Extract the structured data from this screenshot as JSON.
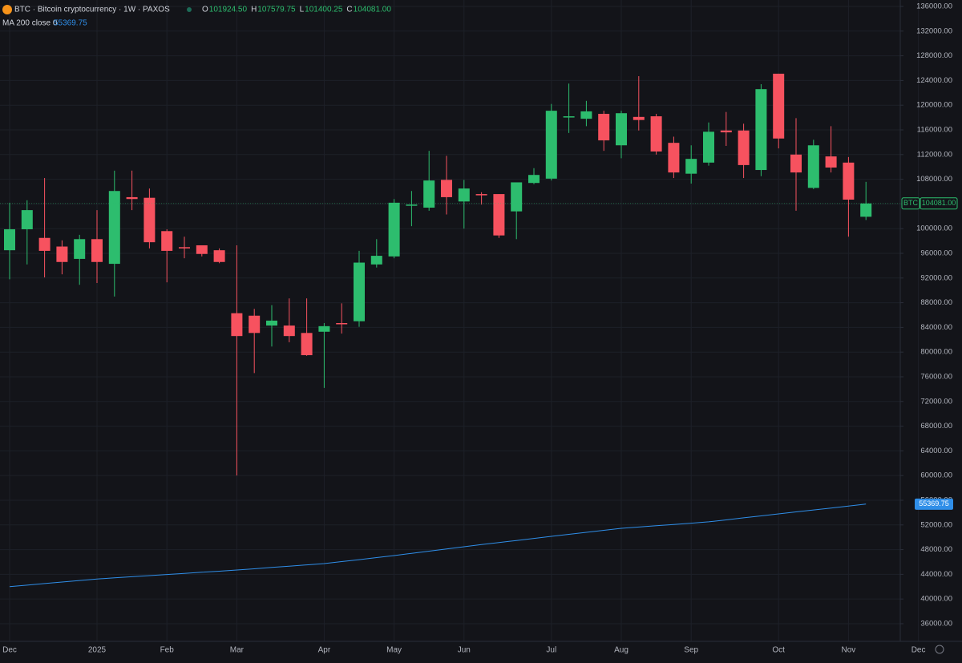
{
  "chart_data": {
    "type": "candlestick",
    "title": "BTC · Bitcoin cryptocurrency · 1W · PAXOS",
    "ohlc_legend": [
      {
        "key": "O",
        "text": "101924.50"
      },
      {
        "key": "H",
        "text": "107579.75"
      },
      {
        "key": "L",
        "text": "101400.25"
      },
      {
        "key": "C",
        "text": "104081.00"
      }
    ],
    "symbol": "BTC",
    "last_price_label": "104081.00",
    "categories": [
      "Dec",
      null,
      null,
      null,
      null,
      "2025",
      null,
      null,
      null,
      "Feb",
      null,
      null,
      null,
      "Mar",
      null,
      null,
      null,
      null,
      "Apr",
      null,
      null,
      null,
      "May",
      null,
      null,
      null,
      "Jun",
      null,
      null,
      null,
      null,
      "Jul",
      null,
      null,
      null,
      "Aug",
      null,
      null,
      null,
      "Sep",
      null,
      null,
      null,
      null,
      "Oct",
      null,
      null,
      null,
      "Nov",
      null,
      null,
      null,
      "Dec"
    ],
    "open": [
      96500,
      99900,
      98500,
      97100,
      95100,
      98300,
      94300,
      105100,
      105000,
      99600,
      97000,
      97300,
      96500,
      86300,
      85900,
      84300,
      84300,
      83100,
      83300,
      84700,
      85000,
      94200,
      95500,
      103800,
      103400,
      107900,
      104400,
      105600,
      105600,
      102800,
      107400,
      108100,
      118100,
      117800,
      118600,
      113500,
      118100,
      118200,
      113900,
      108900,
      110700,
      115900,
      115900,
      109500,
      125100,
      112000,
      106600,
      111700,
      110700,
      101924.5,
      null,
      null,
      null
    ],
    "high": [
      104200,
      104600,
      108200,
      98100,
      99000,
      103000,
      109400,
      109400,
      106500,
      99900,
      98700,
      97300,
      96800,
      97300,
      87000,
      87600,
      88700,
      88700,
      84700,
      87900,
      96400,
      98300,
      104800,
      106100,
      112600,
      111800,
      107900,
      105900,
      105600,
      107400,
      109800,
      120200,
      123500,
      120700,
      119100,
      119100,
      124700,
      118600,
      114900,
      113500,
      117200,
      118900,
      117000,
      123400,
      125100,
      117900,
      114400,
      116600,
      111600,
      107579.75,
      null,
      null,
      null
    ],
    "low": [
      91800,
      94200,
      92100,
      92600,
      90900,
      91200,
      89000,
      103000,
      96800,
      91300,
      95200,
      95500,
      94400,
      60000,
      76600,
      80900,
      81600,
      79400,
      74200,
      83000,
      84100,
      93700,
      95200,
      100400,
      102900,
      102300,
      100000,
      103900,
      98500,
      98300,
      107200,
      107800,
      115500,
      116600,
      112600,
      111400,
      115900,
      112000,
      108200,
      107300,
      110200,
      113400,
      108200,
      108500,
      113000,
      102900,
      106400,
      109100,
      98700,
      101400.25,
      null,
      null,
      null
    ],
    "close": [
      99900,
      103000,
      96400,
      94600,
      98300,
      94600,
      106100,
      104800,
      97800,
      96400,
      96800,
      95900,
      94600,
      82600,
      83100,
      85100,
      82600,
      79500,
      84200,
      84600,
      94500,
      95600,
      104200,
      103900,
      107800,
      105100,
      106500,
      105400,
      98900,
      107500,
      108700,
      119100,
      118200,
      119000,
      114300,
      118700,
      117600,
      112500,
      109100,
      111300,
      115700,
      115600,
      110300,
      122600,
      114600,
      109100,
      113500,
      109900,
      104700,
      104081,
      null,
      null,
      null
    ],
    "up_color": "#2dbd6e",
    "down_color": "#f7525f",
    "indicator": {
      "name": "MA 200 close 0",
      "color": "#2f8ee8",
      "values": [
        42000,
        42250,
        42500,
        42750,
        43000,
        43250,
        43430,
        43610,
        43790,
        43970,
        44150,
        44330,
        44510,
        44700,
        44900,
        45110,
        45320,
        45530,
        45740,
        46060,
        46380,
        46710,
        47040,
        47400,
        47750,
        48110,
        48470,
        48810,
        49140,
        49480,
        49810,
        50150,
        50480,
        50800,
        51130,
        51450,
        51660,
        51870,
        52080,
        52290,
        52500,
        52820,
        53150,
        53470,
        53790,
        54110,
        54430,
        54740,
        55060,
        55369.75,
        null,
        null,
        null
      ]
    },
    "ylim": [
      33140,
      137040
    ],
    "yticks": [
      {
        "value": 36000,
        "label": "36000.00"
      },
      {
        "value": 40000,
        "label": "40000.00"
      },
      {
        "value": 44000,
        "label": "44000.00"
      },
      {
        "value": 48000,
        "label": "48000.00"
      },
      {
        "value": 52000,
        "label": "52000.00"
      },
      {
        "value": 56000,
        "label": "56000.00"
      },
      {
        "value": 60000,
        "label": "60000.00"
      },
      {
        "value": 64000,
        "label": "64000.00"
      },
      {
        "value": 68000,
        "label": "68000.00"
      },
      {
        "value": 72000,
        "label": "72000.00"
      },
      {
        "value": 76000,
        "label": "76000.00"
      },
      {
        "value": 80000,
        "label": "80000.00"
      },
      {
        "value": 84000,
        "label": "84000.00"
      },
      {
        "value": 88000,
        "label": "88000.00"
      },
      {
        "value": 92000,
        "label": "92000.00"
      },
      {
        "value": 96000,
        "label": "96000.00"
      },
      {
        "value": 100000,
        "label": "100000.00"
      },
      {
        "value": 104000,
        "label": "104000.00"
      },
      {
        "value": 108000,
        "label": "108000.00"
      },
      {
        "value": 112000,
        "label": "112000.00"
      },
      {
        "value": 116000,
        "label": "116000.00"
      },
      {
        "value": 120000,
        "label": "120000.00"
      },
      {
        "value": 124000,
        "label": "124000.00"
      },
      {
        "value": 128000,
        "label": "128000.00"
      },
      {
        "value": 132000,
        "label": "132000.00"
      },
      {
        "value": 136000,
        "label": "136000.00"
      }
    ],
    "grid": true
  }
}
